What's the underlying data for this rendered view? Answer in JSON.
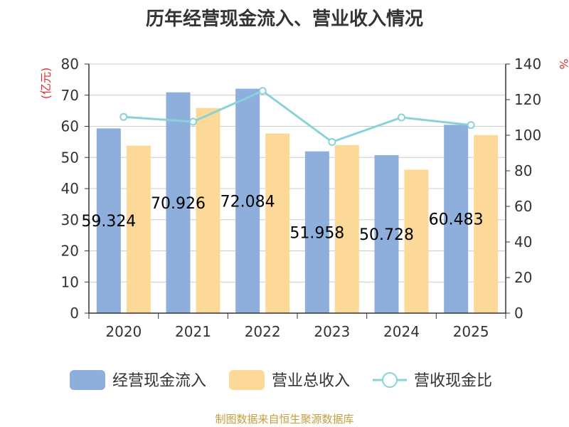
{
  "chart_data": {
    "type": "bar",
    "title": "历年经营现金流入、营业收入情况",
    "categories": [
      "2020",
      "2021",
      "2022",
      "2023",
      "2024",
      "2025"
    ],
    "series": [
      {
        "name": "经营现金流入",
        "type": "bar",
        "axis": "left",
        "color": "#8eaedc",
        "values": [
          59.324,
          70.926,
          72.084,
          51.958,
          50.728,
          60.483
        ],
        "labels": [
          "59.324",
          "70.926",
          "72.084",
          "51.958",
          "50.728",
          "60.483"
        ]
      },
      {
        "name": "营业总收入",
        "type": "bar",
        "axis": "left",
        "color": "#fdd999",
        "values": [
          53.8,
          65.9,
          57.7,
          54.0,
          46.1,
          57.2
        ]
      },
      {
        "name": "营收现金比",
        "type": "line",
        "axis": "right",
        "color": "#88d2d8",
        "values": [
          110.3,
          107.6,
          124.9,
          96.2,
          110.0,
          105.7
        ]
      }
    ],
    "y_left": {
      "label": "(亿元)",
      "min": 0,
      "max": 80,
      "step": 10
    },
    "y_right": {
      "label": "%",
      "min": 0,
      "max": 140,
      "step": 20
    },
    "grid": true,
    "legend_position": "bottom"
  },
  "source": "制图数据来自恒生聚源数据库"
}
